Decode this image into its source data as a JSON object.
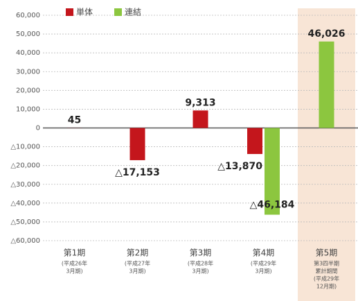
{
  "chart_data": {
    "type": "bar",
    "categories": [
      "第1期",
      "第2期",
      "第3期",
      "第4期",
      "第5期"
    ],
    "category_notes": [
      [
        "(平成26年",
        "3月期)"
      ],
      [
        "(平成27年",
        "3月期)"
      ],
      [
        "(平成28年",
        "3月期)"
      ],
      [
        "(平成29年",
        "3月期)"
      ],
      [
        "第3四半期",
        "累計期間",
        "(平成29年",
        "12月期)"
      ]
    ],
    "series": [
      {
        "name": "単体",
        "color": "#c4161c",
        "values": [
          45,
          -17153,
          9313,
          -13870,
          null
        ],
        "value_labels": [
          "45",
          "△17,153",
          "9,313",
          "△13,870",
          null
        ]
      },
      {
        "name": "連結",
        "color": "#8cc63f",
        "values": [
          null,
          null,
          null,
          -46184,
          46026
        ],
        "value_labels": [
          null,
          null,
          null,
          "△46,184",
          "46,026"
        ]
      }
    ],
    "highlight_category": 4,
    "highlight_color": "#f8e5d6",
    "ylim": [
      -60000,
      60000
    ],
    "yticks": [
      {
        "value": 60000,
        "label": "60,000"
      },
      {
        "value": 50000,
        "label": "50,000"
      },
      {
        "value": 40000,
        "label": "40,000"
      },
      {
        "value": 30000,
        "label": "30,000"
      },
      {
        "value": 20000,
        "label": "20,000"
      },
      {
        "value": 10000,
        "label": "10,000"
      },
      0,
      {
        "value": -10000,
        "label": "△10,000"
      },
      {
        "value": -20000,
        "label": "△20,000"
      },
      {
        "value": -30000,
        "label": "△30,000"
      },
      {
        "value": -40000,
        "label": "△40,000"
      },
      {
        "value": -50000,
        "label": "△50,000"
      },
      {
        "value": -60000,
        "label": "△60,000"
      }
    ],
    "grid": true,
    "legend": "top-left"
  }
}
